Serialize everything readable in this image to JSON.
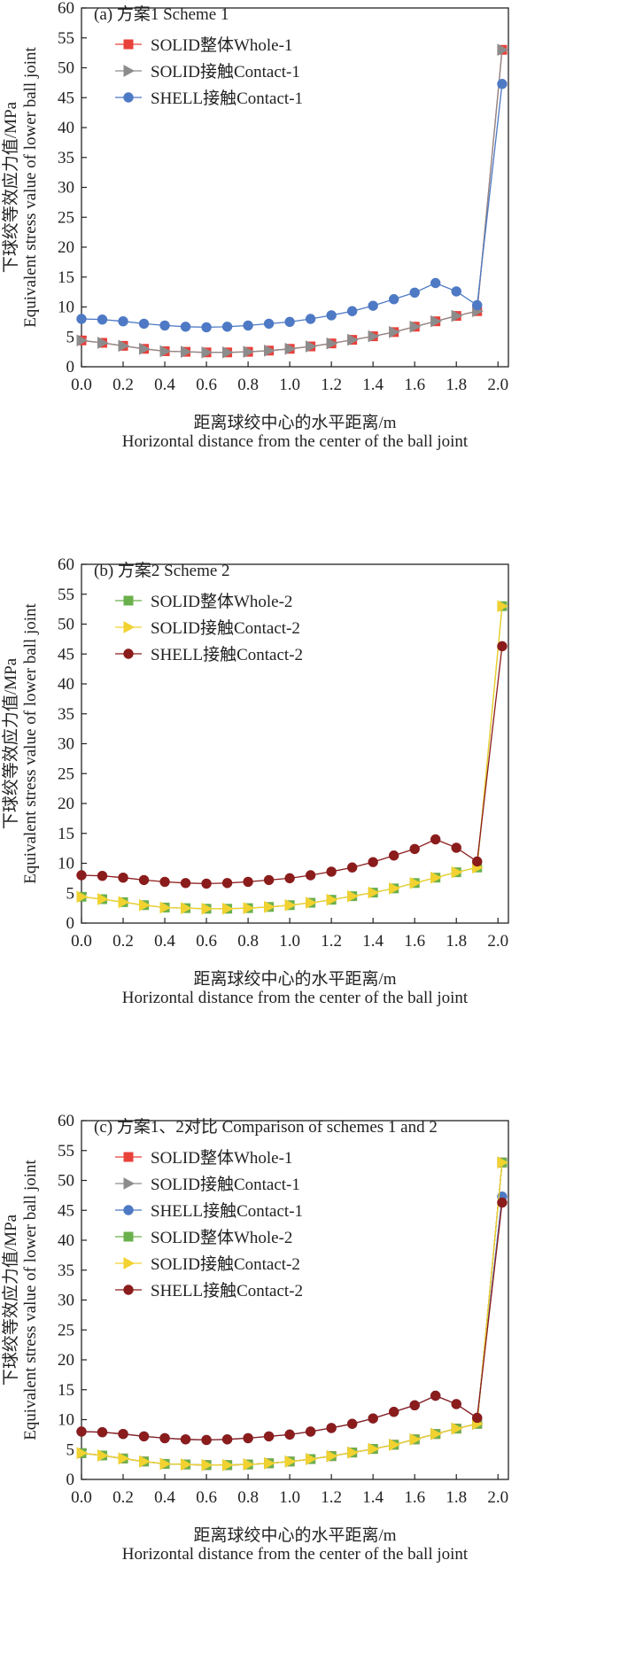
{
  "chart_data": [
    {
      "type": "line",
      "title": "(a) 方案1 Scheme 1",
      "xlabel": [
        "距离球绞中心的水平距离/m",
        "Horizontal distance from the center of the ball joint"
      ],
      "ylabel": [
        "下球绞等效应力值/MPa",
        "Equivalent stress value of lower ball joint"
      ],
      "xlim": [
        0,
        2.05
      ],
      "ylim": [
        0,
        60
      ],
      "xticks": [
        "0.0",
        "0.2",
        "0.4",
        "0.6",
        "0.8",
        "1.0",
        "1.2",
        "1.4",
        "1.6",
        "1.8",
        "2.0"
      ],
      "yticks": [
        "0",
        "5",
        "10",
        "15",
        "20",
        "25",
        "30",
        "35",
        "40",
        "45",
        "50",
        "55",
        "60"
      ],
      "series": [
        {
          "name": "SOLID整体Whole-1",
          "color": "#e8413a",
          "marker": "square",
          "x": [
            0.0,
            0.1,
            0.2,
            0.3,
            0.4,
            0.5,
            0.6,
            0.7,
            0.8,
            0.9,
            1.0,
            1.1,
            1.2,
            1.3,
            1.4,
            1.5,
            1.6,
            1.7,
            1.8,
            1.9,
            2.02
          ],
          "y": [
            4.4,
            4.0,
            3.5,
            3.0,
            2.6,
            2.5,
            2.4,
            2.4,
            2.5,
            2.7,
            3.0,
            3.4,
            3.9,
            4.5,
            5.1,
            5.8,
            6.7,
            7.6,
            8.5,
            9.3,
            53.0
          ]
        },
        {
          "name": "SOLID接触Contact-1",
          "color": "#8c8c8c",
          "marker": "triangle",
          "x": [
            0.0,
            0.1,
            0.2,
            0.3,
            0.4,
            0.5,
            0.6,
            0.7,
            0.8,
            0.9,
            1.0,
            1.1,
            1.2,
            1.3,
            1.4,
            1.5,
            1.6,
            1.7,
            1.8,
            1.9,
            2.02
          ],
          "y": [
            4.4,
            4.0,
            3.5,
            3.0,
            2.6,
            2.5,
            2.4,
            2.4,
            2.5,
            2.7,
            3.0,
            3.4,
            3.9,
            4.5,
            5.1,
            5.8,
            6.7,
            7.6,
            8.5,
            9.3,
            53.0
          ]
        },
        {
          "name": "SHELL接触Contact-1",
          "color": "#4e79c4",
          "marker": "circle",
          "x": [
            0.0,
            0.1,
            0.2,
            0.3,
            0.4,
            0.5,
            0.6,
            0.7,
            0.8,
            0.9,
            1.0,
            1.1,
            1.2,
            1.3,
            1.4,
            1.5,
            1.6,
            1.7,
            1.8,
            1.9,
            2.02
          ],
          "y": [
            8.0,
            7.9,
            7.6,
            7.2,
            6.9,
            6.7,
            6.6,
            6.7,
            6.9,
            7.2,
            7.5,
            8.0,
            8.6,
            9.3,
            10.2,
            11.3,
            12.4,
            14.0,
            12.6,
            10.3,
            47.3
          ]
        }
      ]
    },
    {
      "type": "line",
      "title": "(b) 方案2 Scheme 2",
      "xlabel": [
        "距离球绞中心的水平距离/m",
        "Horizontal distance from the center of the ball joint"
      ],
      "ylabel": [
        "下球绞等效应力值/MPa",
        "Equivalent stress value of lower ball joint"
      ],
      "xlim": [
        0,
        2.05
      ],
      "ylim": [
        0,
        60
      ],
      "xticks": [
        "0.0",
        "0.2",
        "0.4",
        "0.6",
        "0.8",
        "1.0",
        "1.2",
        "1.4",
        "1.6",
        "1.8",
        "2.0"
      ],
      "yticks": [
        "0",
        "5",
        "10",
        "15",
        "20",
        "25",
        "30",
        "35",
        "40",
        "45",
        "50",
        "55",
        "60"
      ],
      "series": [
        {
          "name": "SOLID整体Whole-2",
          "color": "#6ab04c",
          "marker": "square",
          "x": [
            0.0,
            0.1,
            0.2,
            0.3,
            0.4,
            0.5,
            0.6,
            0.7,
            0.8,
            0.9,
            1.0,
            1.1,
            1.2,
            1.3,
            1.4,
            1.5,
            1.6,
            1.7,
            1.8,
            1.9,
            2.02
          ],
          "y": [
            4.4,
            4.0,
            3.5,
            3.0,
            2.6,
            2.5,
            2.4,
            2.4,
            2.5,
            2.7,
            3.0,
            3.4,
            3.9,
            4.5,
            5.1,
            5.8,
            6.7,
            7.6,
            8.5,
            9.3,
            53.0
          ]
        },
        {
          "name": "SOLID接触Contact-2",
          "color": "#f2d230",
          "marker": "triangle",
          "x": [
            0.0,
            0.1,
            0.2,
            0.3,
            0.4,
            0.5,
            0.6,
            0.7,
            0.8,
            0.9,
            1.0,
            1.1,
            1.2,
            1.3,
            1.4,
            1.5,
            1.6,
            1.7,
            1.8,
            1.9,
            2.02
          ],
          "y": [
            4.4,
            4.0,
            3.5,
            3.0,
            2.6,
            2.5,
            2.4,
            2.4,
            2.5,
            2.7,
            3.0,
            3.4,
            3.9,
            4.5,
            5.1,
            5.8,
            6.7,
            7.6,
            8.5,
            9.3,
            53.0
          ]
        },
        {
          "name": "SHELL接触Contact-2",
          "color": "#8b1c1c",
          "marker": "circle",
          "x": [
            0.0,
            0.1,
            0.2,
            0.3,
            0.4,
            0.5,
            0.6,
            0.7,
            0.8,
            0.9,
            1.0,
            1.1,
            1.2,
            1.3,
            1.4,
            1.5,
            1.6,
            1.7,
            1.8,
            1.9,
            2.02
          ],
          "y": [
            8.0,
            7.9,
            7.6,
            7.2,
            6.9,
            6.7,
            6.6,
            6.7,
            6.9,
            7.2,
            7.5,
            8.0,
            8.6,
            9.3,
            10.2,
            11.3,
            12.4,
            14.0,
            12.6,
            10.3,
            46.3
          ]
        }
      ]
    },
    {
      "type": "line",
      "title": "(c) 方案1、2对比 Comparison of schemes 1 and 2",
      "xlabel": [
        "距离球绞中心的水平距离/m",
        "Horizontal distance from the center of the ball joint"
      ],
      "ylabel": [
        "下球绞等效应力值/MPa",
        "Equivalent stress value of lower ball joint"
      ],
      "xlim": [
        0,
        2.05
      ],
      "ylim": [
        0,
        60
      ],
      "xticks": [
        "0.0",
        "0.2",
        "0.4",
        "0.6",
        "0.8",
        "1.0",
        "1.2",
        "1.4",
        "1.6",
        "1.8",
        "2.0"
      ],
      "yticks": [
        "0",
        "5",
        "10",
        "15",
        "20",
        "25",
        "30",
        "35",
        "40",
        "45",
        "50",
        "55",
        "60"
      ],
      "series": [
        {
          "name": "SOLID整体Whole-1",
          "color": "#e8413a",
          "marker": "square",
          "x": [
            0.0,
            0.1,
            0.2,
            0.3,
            0.4,
            0.5,
            0.6,
            0.7,
            0.8,
            0.9,
            1.0,
            1.1,
            1.2,
            1.3,
            1.4,
            1.5,
            1.6,
            1.7,
            1.8,
            1.9,
            2.02
          ],
          "y": [
            4.4,
            4.0,
            3.5,
            3.0,
            2.6,
            2.5,
            2.4,
            2.4,
            2.5,
            2.7,
            3.0,
            3.4,
            3.9,
            4.5,
            5.1,
            5.8,
            6.7,
            7.6,
            8.5,
            9.3,
            53.0
          ]
        },
        {
          "name": "SOLID接触Contact-1",
          "color": "#8c8c8c",
          "marker": "triangle",
          "x": [
            0.0,
            0.1,
            0.2,
            0.3,
            0.4,
            0.5,
            0.6,
            0.7,
            0.8,
            0.9,
            1.0,
            1.1,
            1.2,
            1.3,
            1.4,
            1.5,
            1.6,
            1.7,
            1.8,
            1.9,
            2.02
          ],
          "y": [
            4.4,
            4.0,
            3.5,
            3.0,
            2.6,
            2.5,
            2.4,
            2.4,
            2.5,
            2.7,
            3.0,
            3.4,
            3.9,
            4.5,
            5.1,
            5.8,
            6.7,
            7.6,
            8.5,
            9.3,
            53.0
          ]
        },
        {
          "name": "SHELL接触Contact-1",
          "color": "#4e79c4",
          "marker": "circle",
          "x": [
            0.0,
            0.1,
            0.2,
            0.3,
            0.4,
            0.5,
            0.6,
            0.7,
            0.8,
            0.9,
            1.0,
            1.1,
            1.2,
            1.3,
            1.4,
            1.5,
            1.6,
            1.7,
            1.8,
            1.9,
            2.02
          ],
          "y": [
            8.0,
            7.9,
            7.6,
            7.2,
            6.9,
            6.7,
            6.6,
            6.7,
            6.9,
            7.2,
            7.5,
            8.0,
            8.6,
            9.3,
            10.2,
            11.3,
            12.4,
            14.0,
            12.6,
            10.3,
            47.3
          ]
        },
        {
          "name": "SOLID整体Whole-2",
          "color": "#6ab04c",
          "marker": "square",
          "x": [
            0.0,
            0.1,
            0.2,
            0.3,
            0.4,
            0.5,
            0.6,
            0.7,
            0.8,
            0.9,
            1.0,
            1.1,
            1.2,
            1.3,
            1.4,
            1.5,
            1.6,
            1.7,
            1.8,
            1.9,
            2.02
          ],
          "y": [
            4.4,
            4.0,
            3.5,
            3.0,
            2.6,
            2.5,
            2.4,
            2.4,
            2.5,
            2.7,
            3.0,
            3.4,
            3.9,
            4.5,
            5.1,
            5.8,
            6.7,
            7.6,
            8.5,
            9.3,
            53.0
          ]
        },
        {
          "name": "SOLID接触Contact-2",
          "color": "#f2d230",
          "marker": "triangle",
          "x": [
            0.0,
            0.1,
            0.2,
            0.3,
            0.4,
            0.5,
            0.6,
            0.7,
            0.8,
            0.9,
            1.0,
            1.1,
            1.2,
            1.3,
            1.4,
            1.5,
            1.6,
            1.7,
            1.8,
            1.9,
            2.02
          ],
          "y": [
            4.4,
            4.0,
            3.5,
            3.0,
            2.6,
            2.5,
            2.4,
            2.4,
            2.5,
            2.7,
            3.0,
            3.4,
            3.9,
            4.5,
            5.1,
            5.8,
            6.7,
            7.6,
            8.5,
            9.3,
            53.0
          ]
        },
        {
          "name": "SHELL接触Contact-2",
          "color": "#8b1c1c",
          "marker": "circle",
          "x": [
            0.0,
            0.1,
            0.2,
            0.3,
            0.4,
            0.5,
            0.6,
            0.7,
            0.8,
            0.9,
            1.0,
            1.1,
            1.2,
            1.3,
            1.4,
            1.5,
            1.6,
            1.7,
            1.8,
            1.9,
            2.02
          ],
          "y": [
            8.0,
            7.9,
            7.6,
            7.2,
            6.9,
            6.7,
            6.6,
            6.7,
            6.9,
            7.2,
            7.5,
            8.0,
            8.6,
            9.3,
            10.2,
            11.3,
            12.4,
            14.0,
            12.6,
            10.3,
            46.3
          ]
        }
      ]
    }
  ]
}
